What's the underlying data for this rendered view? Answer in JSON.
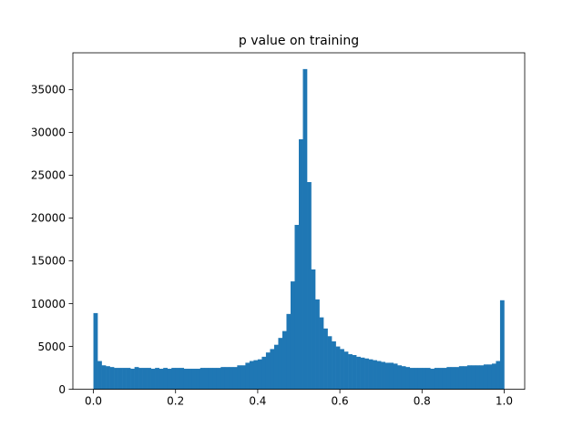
{
  "chart_data": {
    "type": "bar",
    "title": "p value on training",
    "xlabel": "",
    "ylabel": "",
    "xlim": [
      -0.05,
      1.05
    ],
    "ylim": [
      0,
      39300
    ],
    "bin_width": 0.01,
    "bin_start": 0.0,
    "bar_color": "#1f77b4",
    "grid": false,
    "x_ticks": [
      0.0,
      0.2,
      0.4,
      0.6,
      0.8,
      1.0
    ],
    "x_tick_labels": [
      "0.0",
      "0.2",
      "0.4",
      "0.6",
      "0.8",
      "1.0"
    ],
    "y_ticks": [
      0,
      5000,
      10000,
      15000,
      20000,
      25000,
      30000,
      35000
    ],
    "y_tick_labels": [
      "0",
      "5000",
      "10000",
      "15000",
      "20000",
      "25000",
      "30000",
      "35000"
    ],
    "values": [
      8900,
      3300,
      2800,
      2700,
      2600,
      2500,
      2500,
      2500,
      2500,
      2400,
      2600,
      2500,
      2500,
      2500,
      2400,
      2500,
      2400,
      2500,
      2400,
      2500,
      2500,
      2500,
      2400,
      2400,
      2400,
      2400,
      2500,
      2500,
      2500,
      2500,
      2500,
      2600,
      2600,
      2600,
      2600,
      2800,
      2800,
      3100,
      3300,
      3400,
      3500,
      3800,
      4300,
      4700,
      5200,
      6000,
      6800,
      8800,
      12600,
      19200,
      29200,
      37400,
      24200,
      14000,
      10500,
      8400,
      7100,
      6200,
      5600,
      5000,
      4700,
      4400,
      4100,
      4000,
      3800,
      3700,
      3600,
      3500,
      3400,
      3300,
      3200,
      3100,
      3100,
      3000,
      2800,
      2700,
      2600,
      2500,
      2500,
      2500,
      2500,
      2500,
      2400,
      2500,
      2500,
      2500,
      2600,
      2600,
      2600,
      2700,
      2700,
      2800,
      2800,
      2800,
      2800,
      2900,
      2900,
      3000,
      3300,
      10400
    ]
  }
}
